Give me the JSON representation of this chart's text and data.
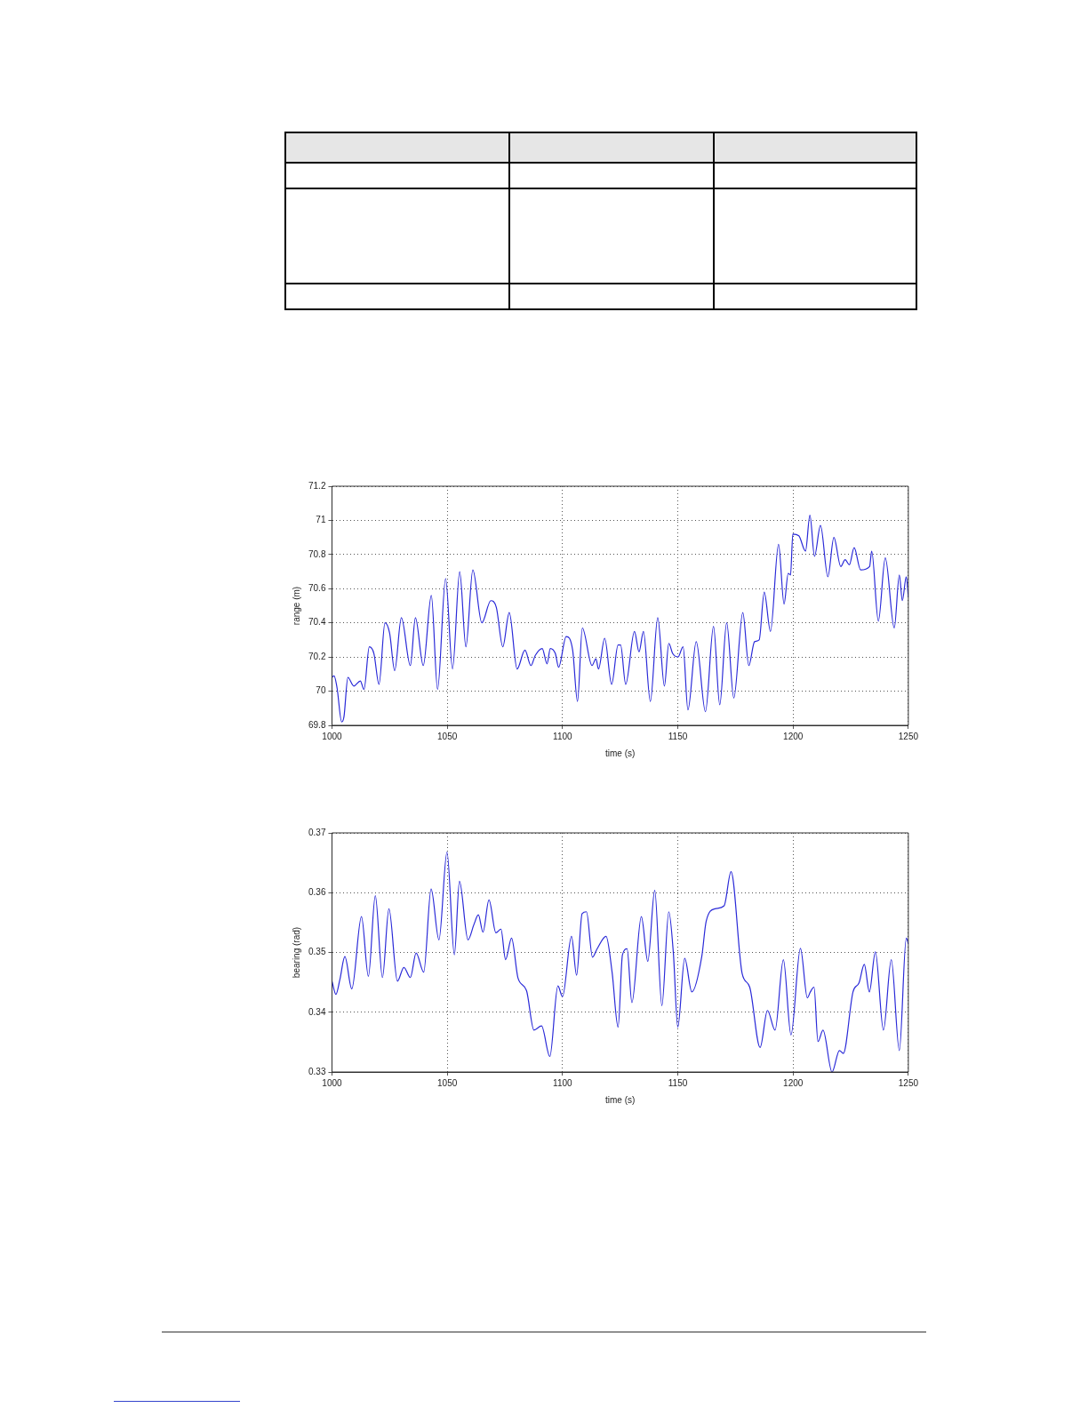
{
  "chart_data": [
    {
      "type": "line",
      "xlabel": "time (s)",
      "ylabel": "range (m)",
      "xlim": [
        1000,
        1250
      ],
      "ylim": [
        69.8,
        71.2
      ],
      "xticks": [
        1000,
        1050,
        1100,
        1150,
        1200,
        1250
      ],
      "yticks": [
        69.8,
        70,
        70.2,
        70.4,
        70.6,
        70.8,
        71,
        71.2
      ],
      "grid": true,
      "series": [
        {
          "color": "#2a2ad8",
          "x": [
            1000,
            1000.9,
            1002.2,
            1004.2,
            1005.2,
            1006.9,
            1009.5,
            1012.3,
            1013.9,
            1016.2,
            1018.2,
            1020.4,
            1023,
            1025,
            1027.2,
            1030.1,
            1034,
            1036.2,
            1039.6,
            1043.1,
            1045.8,
            1049.3,
            1052.3,
            1055.4,
            1058.1,
            1061.1,
            1065,
            1068.9,
            1071.3,
            1074.1,
            1076.9,
            1080.3,
            1083.7,
            1086.3,
            1088.2,
            1091.2,
            1093.3,
            1094.7,
            1096.9,
            1098.3,
            1101.6,
            1104.4,
            1106.5,
            1108.6,
            1112.8,
            1114.5,
            1115.6,
            1118.3,
            1121.3,
            1124.1,
            1125.2,
            1127.4,
            1131.2,
            1133.2,
            1135.1,
            1138.1,
            1141.3,
            1144.2,
            1146.1,
            1147.8,
            1150.1,
            1152.3,
            1154.4,
            1158,
            1162,
            1165.5,
            1168.2,
            1171.2,
            1174.3,
            1178.2,
            1180.8,
            1183.3,
            1185.3,
            1187.5,
            1190.2,
            1193.7,
            1196.1,
            1197.9,
            1198.9,
            1199.9,
            1202.5,
            1205.4,
            1207.3,
            1209.3,
            1211.9,
            1215.1,
            1217.7,
            1220.7,
            1222.6,
            1224.4,
            1226.5,
            1229.3,
            1233.2,
            1234.1,
            1237,
            1240,
            1243.9,
            1246.1,
            1247.4,
            1249.1,
            1250
          ],
          "values": [
            70.08,
            70.09,
            70.02,
            69.82,
            69.85,
            70.08,
            70.03,
            70.06,
            70.01,
            70.26,
            70.22,
            70.04,
            70.4,
            70.34,
            70.12,
            70.43,
            70.15,
            70.43,
            70.15,
            70.56,
            70.01,
            70.66,
            70.13,
            70.7,
            70.26,
            70.71,
            70.4,
            70.53,
            70.49,
            70.26,
            70.46,
            70.13,
            70.24,
            70.15,
            70.21,
            70.25,
            70.16,
            70.25,
            70.22,
            70.14,
            70.32,
            70.24,
            69.94,
            70.37,
            70.15,
            70.19,
            70.13,
            70.31,
            70.04,
            70.27,
            70.27,
            70.04,
            70.35,
            70.23,
            70.35,
            69.94,
            70.43,
            70.03,
            70.28,
            70.22,
            70.2,
            70.26,
            69.89,
            70.29,
            69.88,
            70.38,
            69.92,
            70.4,
            69.96,
            70.46,
            70.15,
            70.29,
            70.3,
            70.58,
            70.35,
            70.86,
            70.51,
            70.69,
            70.68,
            70.92,
            70.91,
            70.82,
            71.03,
            70.79,
            70.97,
            70.67,
            70.9,
            70.73,
            70.77,
            70.74,
            70.84,
            70.71,
            70.73,
            70.82,
            70.41,
            70.78,
            70.37,
            70.68,
            70.53,
            70.67,
            70.55
          ]
        }
      ]
    },
    {
      "type": "line",
      "xlabel": "time (s)",
      "ylabel": "bearing (rad)",
      "xlim": [
        1000,
        1250
      ],
      "ylim": [
        0.33,
        0.37
      ],
      "xticks": [
        1000,
        1050,
        1100,
        1150,
        1200,
        1250
      ],
      "yticks": [
        0.33,
        0.34,
        0.35,
        0.36,
        0.37
      ],
      "grid": true,
      "series": [
        {
          "color": "#2a2ad8",
          "x": [
            1000,
            1001.7,
            1003.4,
            1005.6,
            1008.6,
            1012.8,
            1015.8,
            1018.8,
            1021.9,
            1024.7,
            1028.4,
            1031.2,
            1034,
            1036.5,
            1039.8,
            1043,
            1046.4,
            1049.9,
            1053.1,
            1055.3,
            1059,
            1061.6,
            1063.5,
            1065.5,
            1068.1,
            1071.1,
            1073.3,
            1075.3,
            1077.9,
            1080.7,
            1084.4,
            1087.6,
            1090.9,
            1094.5,
            1098,
            1100,
            1103.9,
            1106.1,
            1108.5,
            1110.4,
            1113,
            1115,
            1118.9,
            1121.5,
            1124.1,
            1126,
            1128,
            1130.1,
            1134.2,
            1137,
            1140,
            1143.1,
            1146.1,
            1148.1,
            1150,
            1153,
            1156.1,
            1160.4,
            1162.3,
            1166.2,
            1170.1,
            1173.1,
            1177.9,
            1181.2,
            1185.7,
            1188.9,
            1192.2,
            1195.8,
            1199.1,
            1203.2,
            1206.2,
            1207.5,
            1209.1,
            1210.8,
            1213,
            1216.9,
            1220.1,
            1221.8,
            1226,
            1228.6,
            1230.9,
            1233.1,
            1235.7,
            1239.2,
            1242.6,
            1246.1,
            1249.1,
            1250
          ],
          "values": [
            0.3452,
            0.343,
            0.3454,
            0.3493,
            0.3439,
            0.356,
            0.346,
            0.3595,
            0.3458,
            0.3573,
            0.3452,
            0.3475,
            0.3458,
            0.3499,
            0.3467,
            0.3606,
            0.3521,
            0.3668,
            0.3496,
            0.3619,
            0.3521,
            0.3547,
            0.3563,
            0.3534,
            0.3588,
            0.3533,
            0.3539,
            0.3488,
            0.3524,
            0.3457,
            0.3436,
            0.337,
            0.3377,
            0.3326,
            0.3444,
            0.3426,
            0.3527,
            0.3462,
            0.3565,
            0.3568,
            0.3492,
            0.3506,
            0.3527,
            0.3467,
            0.3375,
            0.3496,
            0.3506,
            0.3416,
            0.356,
            0.3485,
            0.3604,
            0.3411,
            0.3568,
            0.3498,
            0.3375,
            0.349,
            0.3434,
            0.3493,
            0.3552,
            0.3573,
            0.3578,
            0.3635,
            0.3465,
            0.3442,
            0.3341,
            0.3403,
            0.337,
            0.3488,
            0.3362,
            0.3507,
            0.3424,
            0.3434,
            0.3442,
            0.3351,
            0.337,
            0.33,
            0.3336,
            0.3331,
            0.3434,
            0.3449,
            0.348,
            0.3434,
            0.3501,
            0.337,
            0.3488,
            0.3336,
            0.3524,
            0.3514
          ]
        }
      ]
    }
  ]
}
